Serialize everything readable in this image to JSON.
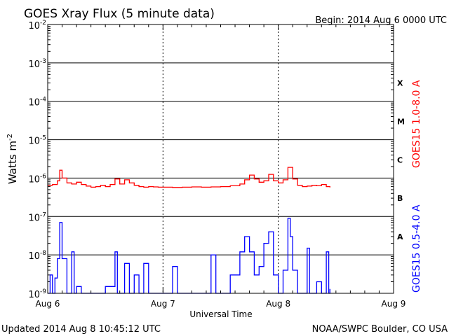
{
  "header": {
    "title": "GOES Xray Flux (5 minute data)",
    "begin": "Begin:  2014 Aug 6 0000 UTC"
  },
  "footer": {
    "updated": "Updated 2014 Aug  8 10:45:12 UTC",
    "credit": "NOAA/SWPC Boulder, CO USA"
  },
  "colors": {
    "long_channel": "#ff0000",
    "short_channel": "#0000ff",
    "grid": "#000000",
    "background": "#ffffff"
  },
  "chart_data": {
    "type": "line",
    "title": "GOES Xray Flux (5 minute data)",
    "xlabel": "Universal Time",
    "ylabel": "Watts m",
    "ylabel_exponent": "-2",
    "yscale": "log",
    "ylim": [
      1e-09,
      0.01
    ],
    "xlim": [
      "2014-08-06 00:00",
      "2014-08-09 00:00"
    ],
    "x_tick_labels": [
      "Aug 6",
      "Aug 7",
      "Aug 8",
      "Aug 9"
    ],
    "y_ticks": [
      {
        "base": "10",
        "exp": "-2",
        "value": 0.01
      },
      {
        "base": "10",
        "exp": "-3",
        "value": 0.001
      },
      {
        "base": "10",
        "exp": "-4",
        "value": 0.0001
      },
      {
        "base": "10",
        "exp": "-5",
        "value": 1e-05
      },
      {
        "base": "10",
        "exp": "-6",
        "value": 1e-06
      },
      {
        "base": "10",
        "exp": "-7",
        "value": 1e-07
      },
      {
        "base": "10",
        "exp": "-8",
        "value": 1e-08
      },
      {
        "base": "10",
        "exp": "-9",
        "value": 1e-09
      }
    ],
    "flare_classes": [
      {
        "label": "X",
        "value": 0.0003
      },
      {
        "label": "M",
        "value": 3e-05
      },
      {
        "label": "C",
        "value": 3e-06
      },
      {
        "label": "B",
        "value": 3e-07
      },
      {
        "label": "A",
        "value": 3e-08
      }
    ],
    "grid": true,
    "series": [
      {
        "name": "GOES15 1.0-8.0 A",
        "color": "#ff0000",
        "points": [
          [
            "2014-08-06 00:00",
            6.5e-07
          ],
          [
            "2014-08-06 01:00",
            6.8e-07
          ],
          [
            "2014-08-06 02:00",
            8.5e-07
          ],
          [
            "2014-08-06 02:30",
            1.6e-06
          ],
          [
            "2014-08-06 03:00",
            1e-06
          ],
          [
            "2014-08-06 04:00",
            7.5e-07
          ],
          [
            "2014-08-06 05:00",
            7e-07
          ],
          [
            "2014-08-06 06:00",
            7.8e-07
          ],
          [
            "2014-08-06 07:00",
            6.8e-07
          ],
          [
            "2014-08-06 08:00",
            6.2e-07
          ],
          [
            "2014-08-06 09:00",
            5.8e-07
          ],
          [
            "2014-08-06 10:00",
            6e-07
          ],
          [
            "2014-08-06 11:00",
            6.5e-07
          ],
          [
            "2014-08-06 12:00",
            6e-07
          ],
          [
            "2014-08-06 13:00",
            6.8e-07
          ],
          [
            "2014-08-06 14:00",
            9.5e-07
          ],
          [
            "2014-08-06 15:00",
            7e-07
          ],
          [
            "2014-08-06 16:00",
            9e-07
          ],
          [
            "2014-08-06 17:00",
            7.5e-07
          ],
          [
            "2014-08-06 18:00",
            6.5e-07
          ],
          [
            "2014-08-06 19:00",
            6e-07
          ],
          [
            "2014-08-06 20:00",
            5.8e-07
          ],
          [
            "2014-08-06 21:00",
            6e-07
          ],
          [
            "2014-08-06 22:00",
            5.9e-07
          ],
          [
            "2014-08-06 23:00",
            5.8e-07
          ],
          [
            "2014-08-07 00:00",
            5.8e-07
          ],
          [
            "2014-08-07 02:00",
            5.7e-07
          ],
          [
            "2014-08-07 04:00",
            5.8e-07
          ],
          [
            "2014-08-07 06:00",
            5.9e-07
          ],
          [
            "2014-08-07 08:00",
            5.8e-07
          ],
          [
            "2014-08-07 10:00",
            5.9e-07
          ],
          [
            "2014-08-07 12:00",
            6e-07
          ],
          [
            "2014-08-07 14:00",
            6.3e-07
          ],
          [
            "2014-08-07 16:00",
            7e-07
          ],
          [
            "2014-08-07 17:00",
            9e-07
          ],
          [
            "2014-08-07 18:00",
            1.2e-06
          ],
          [
            "2014-08-07 19:00",
            9.5e-07
          ],
          [
            "2014-08-07 20:00",
            7.8e-07
          ],
          [
            "2014-08-07 21:00",
            8.5e-07
          ],
          [
            "2014-08-07 22:00",
            1.25e-06
          ],
          [
            "2014-08-07 23:00",
            8.5e-07
          ],
          [
            "2014-08-08 00:00",
            7.5e-07
          ],
          [
            "2014-08-08 01:00",
            9e-07
          ],
          [
            "2014-08-08 02:00",
            1.9e-06
          ],
          [
            "2014-08-08 03:00",
            9.5e-07
          ],
          [
            "2014-08-08 04:00",
            6.5e-07
          ],
          [
            "2014-08-08 05:00",
            6e-07
          ],
          [
            "2014-08-08 06:00",
            6.2e-07
          ],
          [
            "2014-08-08 07:00",
            6.5e-07
          ],
          [
            "2014-08-08 08:00",
            6.3e-07
          ],
          [
            "2014-08-08 09:00",
            6.8e-07
          ],
          [
            "2014-08-08 10:00",
            6e-07
          ],
          [
            "2014-08-08 10:45",
            5.7e-07
          ]
        ]
      },
      {
        "name": "GOES15 0.5-4.0 A",
        "color": "#0000ff",
        "points": [
          [
            "2014-08-06 00:00",
            1e-09
          ],
          [
            "2014-08-06 00:30",
            3e-09
          ],
          [
            "2014-08-06 01:00",
            1e-09
          ],
          [
            "2014-08-06 01:30",
            2.5e-09
          ],
          [
            "2014-08-06 02:00",
            8e-09
          ],
          [
            "2014-08-06 02:30",
            7e-08
          ],
          [
            "2014-08-06 03:00",
            8e-09
          ],
          [
            "2014-08-06 04:00",
            1e-09
          ],
          [
            "2014-08-06 05:00",
            1.2e-08
          ],
          [
            "2014-08-06 05:30",
            1e-09
          ],
          [
            "2014-08-06 06:00",
            1.5e-09
          ],
          [
            "2014-08-06 07:00",
            1e-09
          ],
          [
            "2014-08-06 10:00",
            1e-09
          ],
          [
            "2014-08-06 12:00",
            1.5e-09
          ],
          [
            "2014-08-06 14:00",
            1.2e-08
          ],
          [
            "2014-08-06 14:30",
            1e-09
          ],
          [
            "2014-08-06 16:00",
            6e-09
          ],
          [
            "2014-08-06 17:00",
            1e-09
          ],
          [
            "2014-08-06 18:00",
            3e-09
          ],
          [
            "2014-08-06 19:00",
            1e-09
          ],
          [
            "2014-08-06 20:00",
            6e-09
          ],
          [
            "2014-08-06 21:00",
            1e-09
          ],
          [
            "2014-08-07 00:00",
            1e-09
          ],
          [
            "2014-08-07 02:00",
            5e-09
          ],
          [
            "2014-08-07 03:00",
            1e-09
          ],
          [
            "2014-08-07 06:00",
            1e-09
          ],
          [
            "2014-08-07 10:00",
            1e-08
          ],
          [
            "2014-08-07 11:00",
            1e-09
          ],
          [
            "2014-08-07 14:00",
            3e-09
          ],
          [
            "2014-08-07 16:00",
            1.2e-08
          ],
          [
            "2014-08-07 17:00",
            3e-08
          ],
          [
            "2014-08-07 18:00",
            1.2e-08
          ],
          [
            "2014-08-07 19:00",
            3e-09
          ],
          [
            "2014-08-07 20:00",
            5e-09
          ],
          [
            "2014-08-07 21:00",
            2e-08
          ],
          [
            "2014-08-07 22:00",
            4e-08
          ],
          [
            "2014-08-07 23:00",
            3e-09
          ],
          [
            "2014-08-08 00:00",
            1e-09
          ],
          [
            "2014-08-08 01:00",
            4e-09
          ],
          [
            "2014-08-08 02:00",
            9e-08
          ],
          [
            "2014-08-08 02:30",
            3e-08
          ],
          [
            "2014-08-08 03:00",
            4e-09
          ],
          [
            "2014-08-08 04:00",
            1e-09
          ],
          [
            "2014-08-08 05:00",
            1e-09
          ],
          [
            "2014-08-08 06:00",
            1.5e-08
          ],
          [
            "2014-08-08 06:30",
            1e-09
          ],
          [
            "2014-08-08 08:00",
            2e-09
          ],
          [
            "2014-08-08 09:00",
            1e-09
          ],
          [
            "2014-08-08 10:00",
            1.2e-08
          ],
          [
            "2014-08-08 10:30",
            1e-09
          ],
          [
            "2014-08-08 10:45",
            1.3e-09
          ]
        ]
      }
    ]
  }
}
